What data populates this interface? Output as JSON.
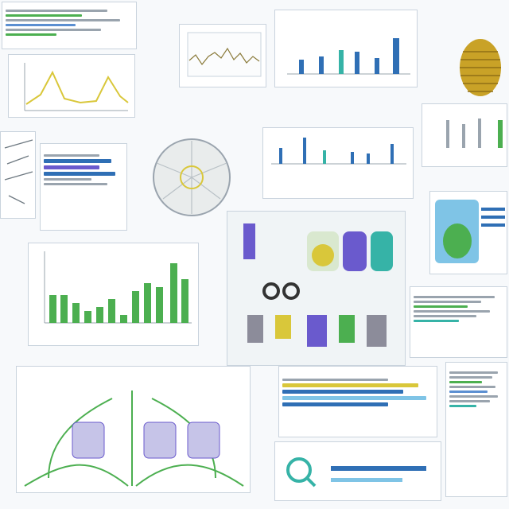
{
  "colors": {
    "green": "#4caf50",
    "blue": "#2f6fb5",
    "teal": "#36b3a7",
    "purple": "#6a5acd",
    "yellow": "#d9c73a",
    "gray": "#9aa4ae",
    "gold": "#c9a227"
  },
  "icons": [
    "beehive-icon",
    "seed-head-icon",
    "lab-device-icon",
    "plant-network-icon",
    "magnifier-icon"
  ]
}
